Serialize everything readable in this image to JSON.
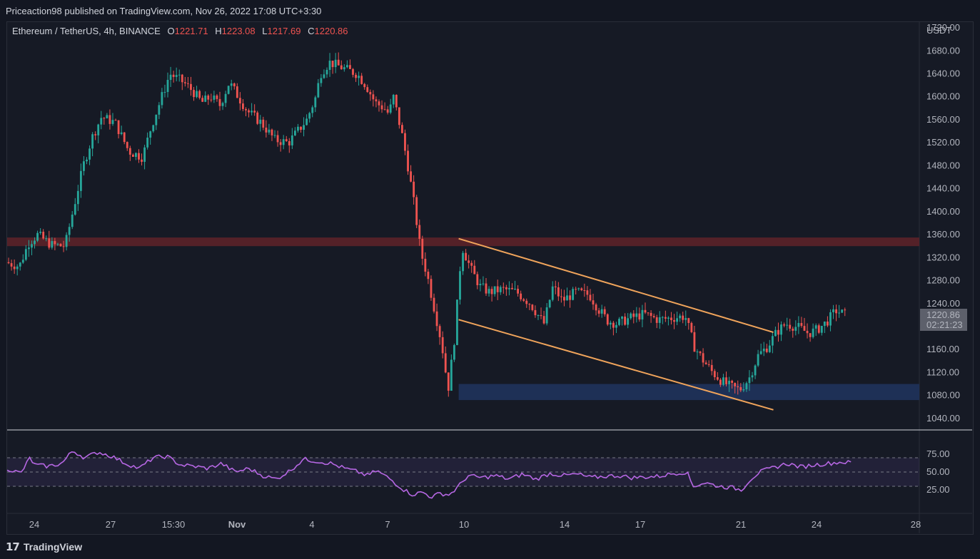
{
  "header": {
    "published": "Priceaction98 published on TradingView.com, Nov 26, 2022 17:08 UTC+3:30"
  },
  "legend": {
    "symbol": "Ethereum / TetherUS, 4h, BINANCE",
    "o_label": "O",
    "o_value": "1221.71",
    "h_label": "H",
    "h_value": "1223.08",
    "l_label": "L",
    "l_value": "1217.69",
    "c_label": "C",
    "c_value": "1220.86"
  },
  "price_axis": {
    "currency": "USDT",
    "labels": [
      "1720.00",
      "1680.00",
      "1640.00",
      "1600.00",
      "1560.00",
      "1520.00",
      "1480.00",
      "1440.00",
      "1400.00",
      "1360.00",
      "1320.00",
      "1280.00",
      "1240.00",
      "1160.00",
      "1120.00",
      "1080.00",
      "1040.00"
    ],
    "last_price": "1220.86",
    "countdown": "02:21:23"
  },
  "rsi_axis": {
    "labels": [
      "75.00",
      "50.00",
      "25.00"
    ]
  },
  "time_axis": {
    "labels": [
      "24",
      "27",
      "15:30",
      "Nov",
      "4",
      "7",
      "10",
      "14",
      "17",
      "21",
      "24",
      "28"
    ]
  },
  "footer": {
    "brand": "TradingView"
  },
  "colors": {
    "up": "#26a69a",
    "down": "#ef5350",
    "rsi": "#b667e3",
    "resistance_zone": "#5b2229",
    "support_zone": "#1f3158",
    "channel": "#f0a45b",
    "background": "#161a25"
  },
  "chart_data": {
    "type": "candlestick",
    "symbol": "ETHUSDT",
    "interval": "4h",
    "ylim": [
      1020,
      1730
    ],
    "resistance_zone": [
      1340,
      1355
    ],
    "support_zone": [
      1072,
      1100
    ],
    "channel": {
      "upper": [
        {
          "t": 0.495,
          "v": 1353
        },
        {
          "t": 0.84,
          "v": 1190
        }
      ],
      "lower": [
        {
          "t": 0.495,
          "v": 1212
        },
        {
          "t": 0.84,
          "v": 1055
        }
      ]
    },
    "price_path": [
      [
        0.0,
        1312
      ],
      [
        0.015,
        1305
      ],
      [
        0.025,
        1345
      ],
      [
        0.035,
        1360
      ],
      [
        0.05,
        1342
      ],
      [
        0.065,
        1340
      ],
      [
        0.075,
        1410
      ],
      [
        0.085,
        1480
      ],
      [
        0.095,
        1530
      ],
      [
        0.105,
        1565
      ],
      [
        0.12,
        1555
      ],
      [
        0.135,
        1505
      ],
      [
        0.15,
        1495
      ],
      [
        0.16,
        1550
      ],
      [
        0.17,
        1595
      ],
      [
        0.18,
        1640
      ],
      [
        0.195,
        1625
      ],
      [
        0.205,
        1610
      ],
      [
        0.215,
        1590
      ],
      [
        0.225,
        1600
      ],
      [
        0.235,
        1585
      ],
      [
        0.245,
        1625
      ],
      [
        0.255,
        1600
      ],
      [
        0.265,
        1575
      ],
      [
        0.28,
        1555
      ],
      [
        0.295,
        1525
      ],
      [
        0.31,
        1520
      ],
      [
        0.32,
        1540
      ],
      [
        0.33,
        1560
      ],
      [
        0.34,
        1600
      ],
      [
        0.345,
        1640
      ],
      [
        0.355,
        1660
      ],
      [
        0.37,
        1650
      ],
      [
        0.385,
        1640
      ],
      [
        0.395,
        1620
      ],
      [
        0.405,
        1590
      ],
      [
        0.415,
        1580
      ],
      [
        0.42,
        1570
      ],
      [
        0.425,
        1600
      ],
      [
        0.435,
        1530
      ],
      [
        0.442,
        1470
      ],
      [
        0.448,
        1410
      ],
      [
        0.455,
        1330
      ],
      [
        0.462,
        1290
      ],
      [
        0.47,
        1230
      ],
      [
        0.478,
        1170
      ],
      [
        0.485,
        1090
      ],
      [
        0.492,
        1180
      ],
      [
        0.5,
        1340
      ],
      [
        0.51,
        1300
      ],
      [
        0.52,
        1270
      ],
      [
        0.53,
        1260
      ],
      [
        0.545,
        1265
      ],
      [
        0.56,
        1260
      ],
      [
        0.575,
        1240
      ],
      [
        0.59,
        1205
      ],
      [
        0.6,
        1270
      ],
      [
        0.61,
        1245
      ],
      [
        0.625,
        1260
      ],
      [
        0.64,
        1255
      ],
      [
        0.65,
        1230
      ],
      [
        0.66,
        1210
      ],
      [
        0.67,
        1205
      ],
      [
        0.685,
        1215
      ],
      [
        0.7,
        1222
      ],
      [
        0.715,
        1212
      ],
      [
        0.73,
        1215
      ],
      [
        0.745,
        1218
      ],
      [
        0.755,
        1165
      ],
      [
        0.765,
        1140
      ],
      [
        0.775,
        1120
      ],
      [
        0.785,
        1105
      ],
      [
        0.795,
        1095
      ],
      [
        0.805,
        1090
      ],
      [
        0.815,
        1110
      ],
      [
        0.825,
        1150
      ],
      [
        0.835,
        1165
      ],
      [
        0.845,
        1190
      ],
      [
        0.855,
        1205
      ],
      [
        0.87,
        1198
      ],
      [
        0.88,
        1188
      ],
      [
        0.89,
        1195
      ],
      [
        0.9,
        1208
      ],
      [
        0.91,
        1228
      ],
      [
        0.92,
        1221
      ]
    ],
    "rsi_ylim": [
      0,
      100
    ],
    "rsi_levels": [
      70,
      50,
      30
    ],
    "rsi_path": [
      [
        0.0,
        55
      ],
      [
        0.015,
        48
      ],
      [
        0.025,
        70
      ],
      [
        0.03,
        60
      ],
      [
        0.045,
        58
      ],
      [
        0.06,
        62
      ],
      [
        0.072,
        80
      ],
      [
        0.085,
        70
      ],
      [
        0.1,
        78
      ],
      [
        0.115,
        72
      ],
      [
        0.13,
        62
      ],
      [
        0.145,
        55
      ],
      [
        0.16,
        70
      ],
      [
        0.175,
        72
      ],
      [
        0.19,
        60
      ],
      [
        0.205,
        58
      ],
      [
        0.22,
        55
      ],
      [
        0.235,
        62
      ],
      [
        0.25,
        50
      ],
      [
        0.265,
        55
      ],
      [
        0.28,
        45
      ],
      [
        0.295,
        40
      ],
      [
        0.31,
        52
      ],
      [
        0.325,
        68
      ],
      [
        0.34,
        65
      ],
      [
        0.355,
        62
      ],
      [
        0.37,
        55
      ],
      [
        0.385,
        50
      ],
      [
        0.395,
        45
      ],
      [
        0.405,
        52
      ],
      [
        0.42,
        40
      ],
      [
        0.435,
        25
      ],
      [
        0.445,
        18
      ],
      [
        0.455,
        22
      ],
      [
        0.465,
        15
      ],
      [
        0.475,
        20
      ],
      [
        0.485,
        18
      ],
      [
        0.495,
        30
      ],
      [
        0.505,
        45
      ],
      [
        0.52,
        42
      ],
      [
        0.535,
        45
      ],
      [
        0.55,
        40
      ],
      [
        0.565,
        47
      ],
      [
        0.58,
        40
      ],
      [
        0.595,
        48
      ],
      [
        0.61,
        45
      ],
      [
        0.625,
        47
      ],
      [
        0.64,
        42
      ],
      [
        0.655,
        44
      ],
      [
        0.67,
        45
      ],
      [
        0.685,
        42
      ],
      [
        0.7,
        43
      ],
      [
        0.715,
        44
      ],
      [
        0.73,
        48
      ],
      [
        0.745,
        50
      ],
      [
        0.752,
        30
      ],
      [
        0.765,
        35
      ],
      [
        0.78,
        30
      ],
      [
        0.795,
        28
      ],
      [
        0.805,
        25
      ],
      [
        0.815,
        40
      ],
      [
        0.825,
        50
      ],
      [
        0.84,
        56
      ],
      [
        0.855,
        62
      ],
      [
        0.87,
        57
      ],
      [
        0.885,
        60
      ],
      [
        0.9,
        62
      ],
      [
        0.915,
        64
      ],
      [
        0.925,
        63
      ]
    ],
    "xlim": [
      "Oct 23",
      "Nov 28"
    ]
  }
}
